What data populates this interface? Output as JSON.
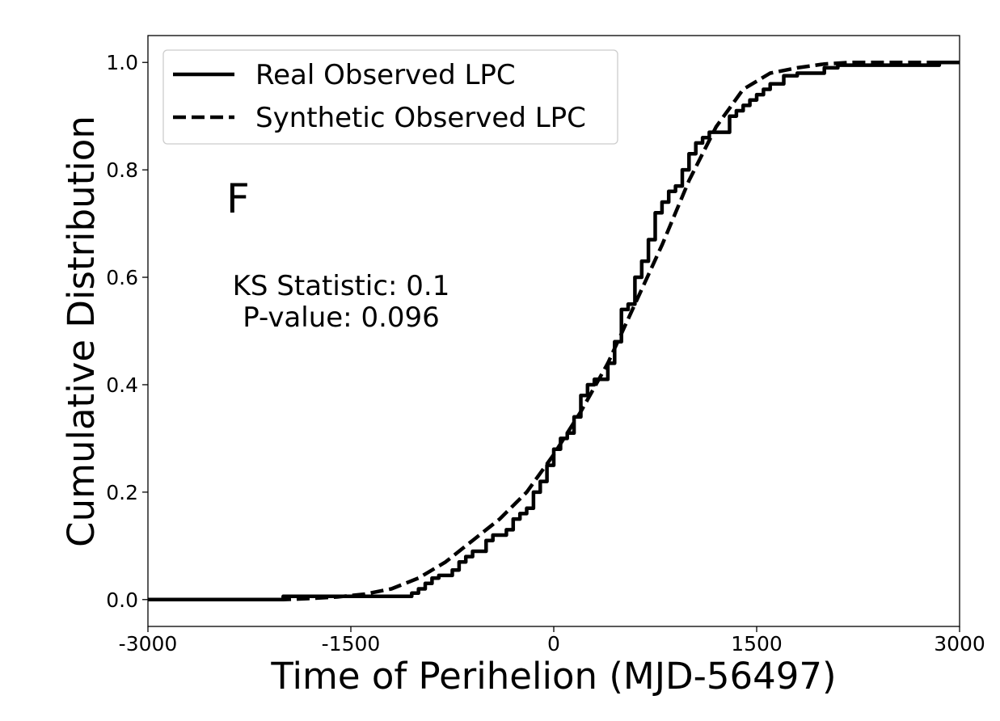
{
  "chart_data": {
    "type": "line",
    "xlabel": "Time of Perihelion (MJD-56497)",
    "ylabel": "Cumulative Distribution",
    "xlim": [
      -3000,
      3000
    ],
    "ylim": [
      -0.05,
      1.05
    ],
    "x_ticks": [
      -3000,
      -1500,
      0,
      1500,
      3000
    ],
    "x_tick_labels": [
      "-3000",
      "-1500",
      "0",
      "1500",
      "3000"
    ],
    "y_ticks": [
      0.0,
      0.2,
      0.4,
      0.6,
      0.8,
      1.0
    ],
    "y_tick_labels": [
      "0.0",
      "0.2",
      "0.4",
      "0.6",
      "0.8",
      "1.0"
    ],
    "grid": false,
    "legend_position": "top-left",
    "annotations": {
      "panel_letter": "F",
      "ks_line": "KS Statistic: 0.1",
      "pvalue_line": "P-value: 0.096"
    },
    "series": [
      {
        "name": "Real Observed LPC",
        "style": "solid",
        "color": "#000000",
        "step": true,
        "points": [
          [
            -3000,
            0.0
          ],
          [
            -2010,
            0.0
          ],
          [
            -2000,
            0.006
          ],
          [
            -1100,
            0.006
          ],
          [
            -1050,
            0.012
          ],
          [
            -1000,
            0.02
          ],
          [
            -950,
            0.03
          ],
          [
            -900,
            0.04
          ],
          [
            -850,
            0.045
          ],
          [
            -800,
            0.045
          ],
          [
            -750,
            0.055
          ],
          [
            -700,
            0.07
          ],
          [
            -650,
            0.08
          ],
          [
            -600,
            0.09
          ],
          [
            -550,
            0.09
          ],
          [
            -500,
            0.11
          ],
          [
            -450,
            0.12
          ],
          [
            -400,
            0.12
          ],
          [
            -350,
            0.13
          ],
          [
            -300,
            0.15
          ],
          [
            -250,
            0.16
          ],
          [
            -200,
            0.17
          ],
          [
            -150,
            0.2
          ],
          [
            -100,
            0.22
          ],
          [
            -50,
            0.25
          ],
          [
            0,
            0.28
          ],
          [
            50,
            0.3
          ],
          [
            100,
            0.31
          ],
          [
            150,
            0.34
          ],
          [
            200,
            0.38
          ],
          [
            250,
            0.4
          ],
          [
            300,
            0.41
          ],
          [
            350,
            0.41
          ],
          [
            400,
            0.44
          ],
          [
            450,
            0.48
          ],
          [
            500,
            0.54
          ],
          [
            550,
            0.55
          ],
          [
            600,
            0.6
          ],
          [
            650,
            0.63
          ],
          [
            700,
            0.67
          ],
          [
            750,
            0.72
          ],
          [
            800,
            0.74
          ],
          [
            850,
            0.76
          ],
          [
            900,
            0.77
          ],
          [
            950,
            0.8
          ],
          [
            1000,
            0.83
          ],
          [
            1050,
            0.85
          ],
          [
            1100,
            0.86
          ],
          [
            1150,
            0.87
          ],
          [
            1250,
            0.87
          ],
          [
            1300,
            0.9
          ],
          [
            1350,
            0.91
          ],
          [
            1400,
            0.92
          ],
          [
            1450,
            0.93
          ],
          [
            1500,
            0.94
          ],
          [
            1550,
            0.95
          ],
          [
            1600,
            0.96
          ],
          [
            1650,
            0.96
          ],
          [
            1700,
            0.975
          ],
          [
            1800,
            0.98
          ],
          [
            1900,
            0.98
          ],
          [
            2000,
            0.99
          ],
          [
            2100,
            0.995
          ],
          [
            2800,
            0.995
          ],
          [
            2850,
            1.0
          ],
          [
            3000,
            1.0
          ]
        ]
      },
      {
        "name": "Synthetic Observed LPC",
        "style": "dashed",
        "color": "#000000",
        "step": false,
        "points": [
          [
            -3000,
            0.0
          ],
          [
            -2000,
            0.0
          ],
          [
            -1800,
            0.002
          ],
          [
            -1600,
            0.005
          ],
          [
            -1400,
            0.01
          ],
          [
            -1200,
            0.02
          ],
          [
            -1000,
            0.04
          ],
          [
            -800,
            0.07
          ],
          [
            -600,
            0.11
          ],
          [
            -400,
            0.15
          ],
          [
            -200,
            0.2
          ],
          [
            0,
            0.27
          ],
          [
            200,
            0.35
          ],
          [
            400,
            0.44
          ],
          [
            600,
            0.55
          ],
          [
            800,
            0.66
          ],
          [
            1000,
            0.78
          ],
          [
            1200,
            0.88
          ],
          [
            1400,
            0.95
          ],
          [
            1600,
            0.98
          ],
          [
            1800,
            0.99
          ],
          [
            2000,
            0.997
          ],
          [
            2200,
            1.0
          ],
          [
            3000,
            1.0
          ]
        ]
      }
    ]
  }
}
